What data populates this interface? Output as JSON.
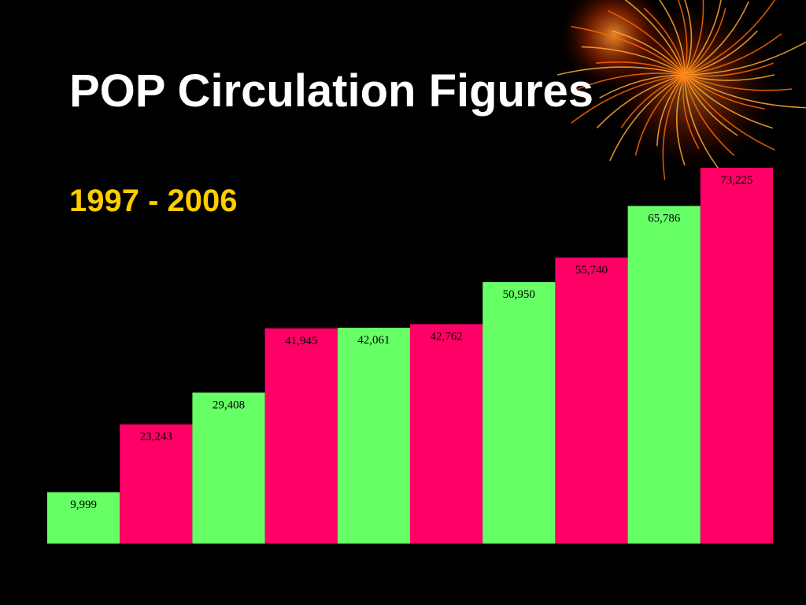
{
  "chart_data": {
    "type": "bar",
    "title": "POP Circulation Figures",
    "subtitle": "1997 - 2006",
    "values": [
      9999,
      23243,
      29408,
      41945,
      42061,
      42762,
      50950,
      55740,
      65786,
      73225
    ],
    "value_labels": [
      "9,999",
      "23,243",
      "29,408",
      "41,945",
      "42,061",
      "42,762",
      "50,950",
      "55,740",
      "65,786",
      "73,225"
    ],
    "colors": [
      "#66ff66",
      "#ff0066",
      "#66ff66",
      "#ff0066",
      "#66ff66",
      "#ff0066",
      "#66ff66",
      "#ff0066",
      "#66ff66",
      "#ff0066"
    ]
  }
}
